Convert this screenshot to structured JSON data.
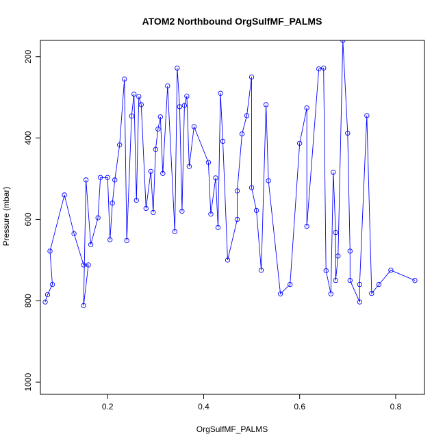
{
  "chart_data": {
    "type": "line",
    "title": "ATOM2 Northbound OrgSulfMF_PALMS",
    "xlabel": "OrgSulfMF_PALMS",
    "ylabel": "Pressure (mbar)",
    "xlim": [
      0.06,
      0.86
    ],
    "ylim": [
      1030,
      160
    ],
    "y_reversed": true,
    "x_ticks": [
      0.2,
      0.4,
      0.6,
      0.8
    ],
    "x_tick_labels": [
      "0.2",
      "0.4",
      "0.6",
      "0.8"
    ],
    "y_ticks": [
      200,
      400,
      600,
      800,
      1000
    ],
    "y_tick_labels": [
      "200",
      "400",
      "600",
      "800",
      "1000"
    ],
    "grid": false,
    "legend": "none",
    "color": "#0000ff",
    "marker": "open-circle",
    "series": [
      {
        "points": [
          [
            0.07,
            803
          ],
          [
            0.075,
            785
          ],
          [
            0.085,
            760
          ],
          [
            0.08,
            678
          ],
          [
            0.11,
            540
          ],
          [
            0.13,
            635
          ],
          [
            0.15,
            712
          ],
          [
            0.16,
            712
          ],
          [
            0.15,
            812
          ],
          [
            0.155,
            503
          ],
          [
            0.165,
            662
          ],
          [
            0.18,
            596
          ],
          [
            0.185,
            497
          ],
          [
            0.2,
            497
          ],
          [
            0.205,
            650
          ],
          [
            0.21,
            560
          ],
          [
            0.215,
            503
          ],
          [
            0.225,
            417
          ],
          [
            0.235,
            255
          ],
          [
            0.24,
            652
          ],
          [
            0.25,
            346
          ],
          [
            0.255,
            292
          ],
          [
            0.26,
            553
          ],
          [
            0.265,
            298
          ],
          [
            0.27,
            318
          ],
          [
            0.28,
            573
          ],
          [
            0.29,
            482
          ],
          [
            0.295,
            583
          ],
          [
            0.3,
            428
          ],
          [
            0.305,
            378
          ],
          [
            0.31,
            348
          ],
          [
            0.315,
            487
          ],
          [
            0.325,
            272
          ],
          [
            0.34,
            630
          ],
          [
            0.345,
            228
          ],
          [
            0.35,
            323
          ],
          [
            0.355,
            580
          ],
          [
            0.36,
            320
          ],
          [
            0.365,
            297
          ],
          [
            0.37,
            470
          ],
          [
            0.38,
            372
          ],
          [
            0.41,
            460
          ],
          [
            0.415,
            587
          ],
          [
            0.425,
            498
          ],
          [
            0.43,
            620
          ],
          [
            0.435,
            290
          ],
          [
            0.44,
            408
          ],
          [
            0.45,
            700
          ],
          [
            0.47,
            600
          ],
          [
            0.47,
            530
          ],
          [
            0.48,
            390
          ],
          [
            0.49,
            345
          ],
          [
            0.5,
            250
          ],
          [
            0.5,
            522
          ],
          [
            0.51,
            578
          ],
          [
            0.52,
            725
          ],
          [
            0.53,
            318
          ],
          [
            0.535,
            505
          ],
          [
            0.56,
            783
          ],
          [
            0.58,
            760
          ],
          [
            0.6,
            413
          ],
          [
            0.615,
            326
          ],
          [
            0.615,
            617
          ],
          [
            0.64,
            230
          ],
          [
            0.65,
            228
          ],
          [
            0.655,
            726
          ],
          [
            0.665,
            783
          ],
          [
            0.67,
            484
          ],
          [
            0.675,
            632
          ],
          [
            0.675,
            750
          ],
          [
            0.68,
            690
          ],
          [
            0.69,
            160
          ],
          [
            0.7,
            388
          ],
          [
            0.705,
            678
          ],
          [
            0.705,
            750
          ],
          [
            0.725,
            803
          ],
          [
            0.725,
            760
          ],
          [
            0.74,
            345
          ],
          [
            0.75,
            782
          ],
          [
            0.765,
            760
          ],
          [
            0.79,
            725
          ],
          [
            0.84,
            750
          ]
        ]
      }
    ]
  }
}
